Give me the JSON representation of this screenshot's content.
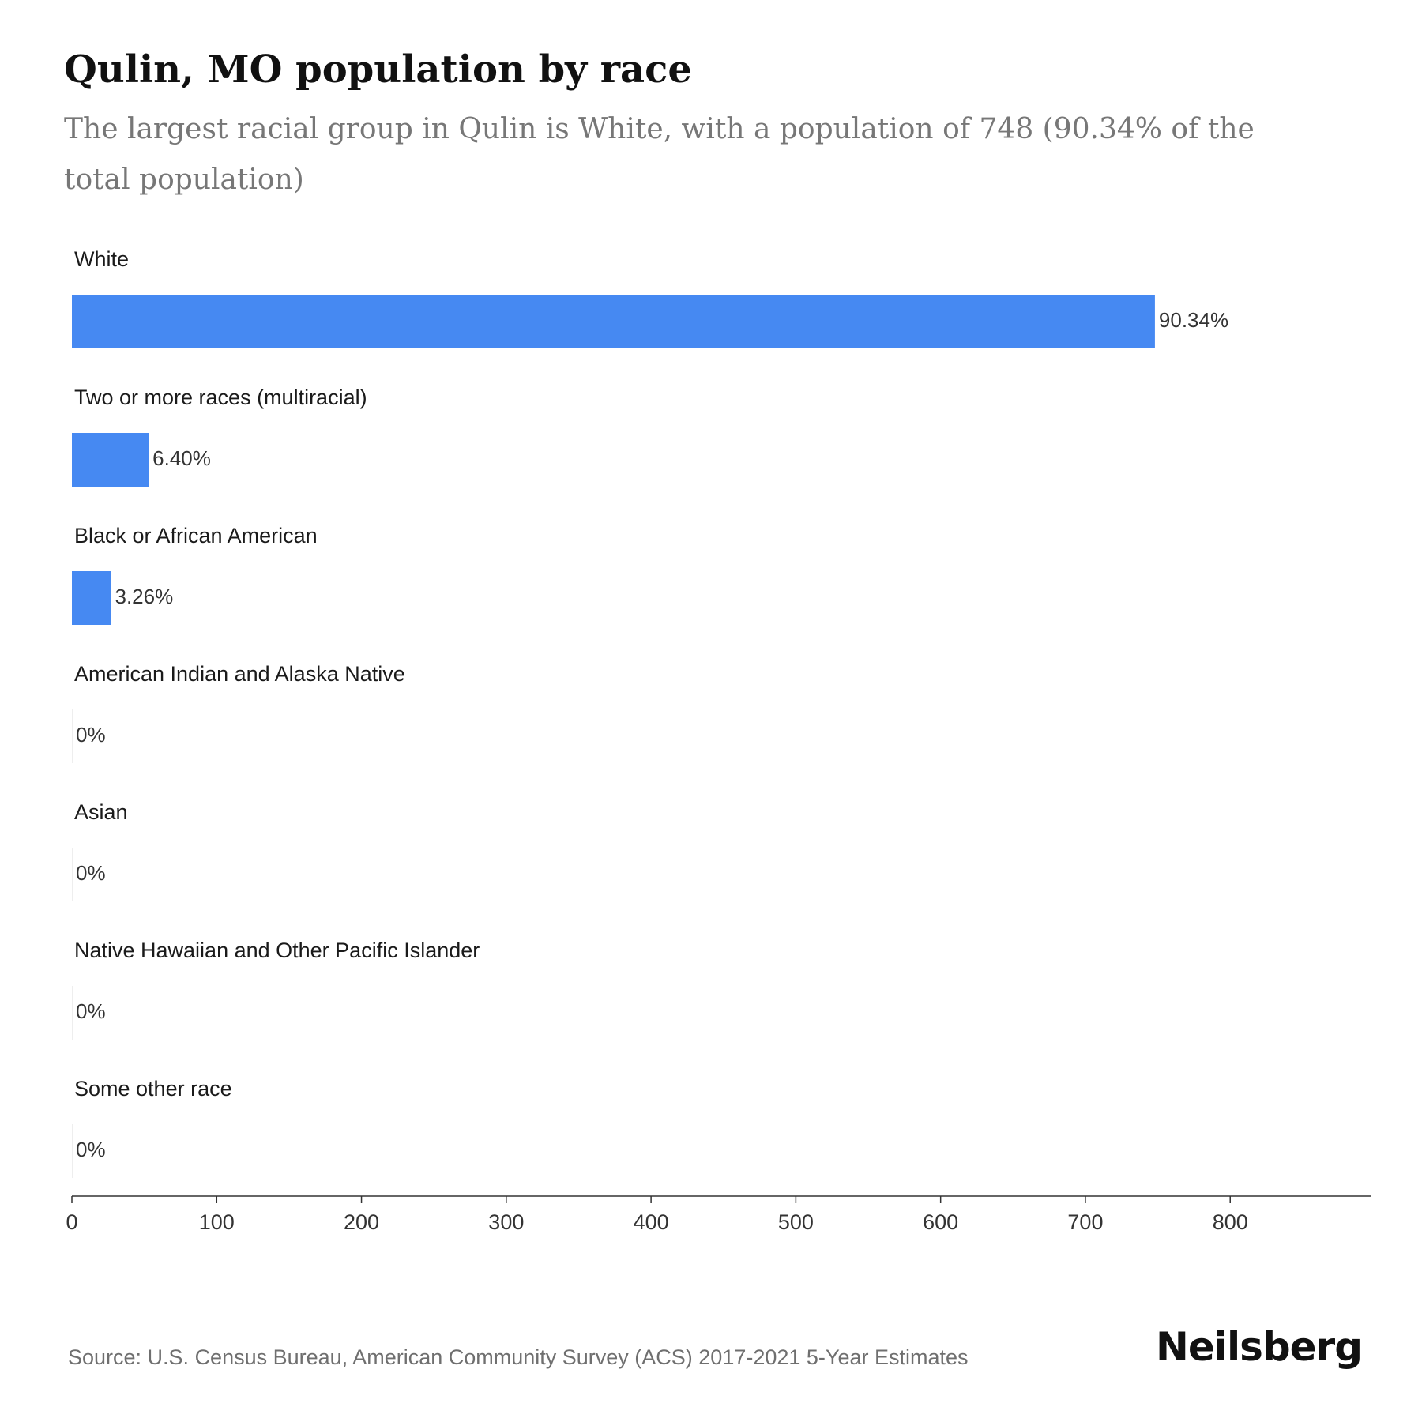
{
  "header": {
    "title": "Qulin, MO population by race",
    "subtitle": "The largest racial group in Qulin is White, with a population of 748 (90.34% of the total population)"
  },
  "chart_data": {
    "type": "bar",
    "orientation": "horizontal",
    "categories": [
      "White",
      "Two or more races (multiracial)",
      "Black or African American",
      "American Indian and Alaska Native",
      "Asian",
      "Native Hawaiian and Other Pacific Islander",
      "Some other race"
    ],
    "values": [
      748,
      53,
      27,
      0,
      0,
      0,
      0
    ],
    "value_labels": [
      "90.34%",
      "6.40%",
      "3.26%",
      "0%",
      "0%",
      "0%",
      "0%"
    ],
    "x_ticks": [
      0,
      100,
      200,
      300,
      400,
      500,
      600,
      700,
      800
    ],
    "xlim": [
      0,
      897
    ],
    "grid": false,
    "bar_color": "#4689f2"
  },
  "footer": {
    "source": "Source: U.S. Census Bureau, American Community Survey (ACS) 2017-2021 5-Year Estimates",
    "brand": "Neilsberg"
  }
}
